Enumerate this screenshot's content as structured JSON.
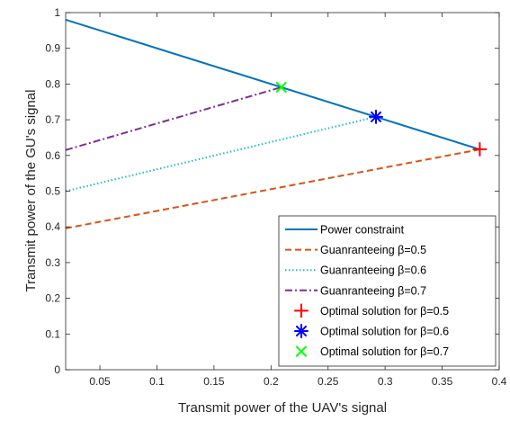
{
  "chart_data": {
    "type": "line",
    "xlabel": "Transmit power of the UAV's signal",
    "ylabel": "Transmit power of the GU's signal",
    "xlim": [
      0.02,
      0.4
    ],
    "ylim": [
      0,
      1
    ],
    "xticks": [
      "0.05",
      "0.1",
      "0.15",
      "0.2",
      "0.25",
      "0.3",
      "0.35",
      "0.4"
    ],
    "yticks": [
      "0",
      "0.1",
      "0.2",
      "0.3",
      "0.4",
      "0.5",
      "0.6",
      "0.7",
      "0.8",
      "0.9",
      "1"
    ],
    "grid": false,
    "legend_position": "bottom-right",
    "series": [
      {
        "name": "Power constraint",
        "style": "solid",
        "color": "#0072BD",
        "x": [
          0.02,
          0.383
        ],
        "y": [
          0.98,
          0.617
        ]
      },
      {
        "name": "Guanranteeing β=0.5",
        "style": "dashed",
        "color": "#D95319",
        "x": [
          0.02,
          0.383
        ],
        "y": [
          0.396,
          0.617
        ]
      },
      {
        "name": "Guanranteeing β=0.6",
        "style": "dotted",
        "color": "#20B8C8",
        "x": [
          0.02,
          0.292
        ],
        "y": [
          0.5,
          0.708
        ]
      },
      {
        "name": "Guanranteeing β=0.7",
        "style": "dashdot",
        "color": "#7E2F8E",
        "x": [
          0.02,
          0.209
        ],
        "y": [
          0.615,
          0.791
        ]
      }
    ],
    "points": [
      {
        "name": "Optimal solution for β=0.5",
        "marker": "plus",
        "color": "#FF0000",
        "x": 0.383,
        "y": 0.617
      },
      {
        "name": "Optimal solution for β=0.6",
        "marker": "asterisk",
        "color": "#0000FF",
        "x": 0.292,
        "y": 0.708
      },
      {
        "name": "Optimal solution for β=0.7",
        "marker": "x",
        "color": "#00FF00",
        "x": 0.209,
        "y": 0.791
      }
    ]
  }
}
